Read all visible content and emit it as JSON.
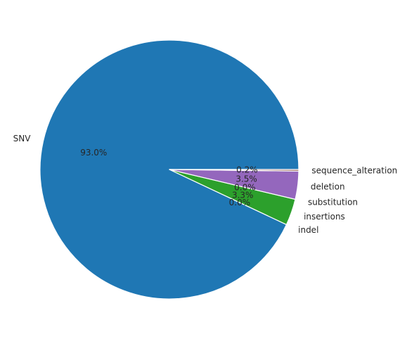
{
  "chart_data": {
    "type": "pie",
    "categories": [
      "SNV",
      "indel",
      "insertions",
      "substitution",
      "deletion",
      "sequence_alteration"
    ],
    "values": [
      93.0,
      0.0,
      3.3,
      0.0,
      3.5,
      0.2
    ],
    "value_labels": [
      "93.0%",
      "0.0%",
      "3.3%",
      "0.0%",
      "3.5%",
      "0.2%"
    ],
    "colors": [
      "#1f77b4",
      "#ff7f0e",
      "#2ca02c",
      "#d62728",
      "#9467bd",
      "#8c564b"
    ],
    "start_angle_deg": 0,
    "direction": "counterclockwise",
    "title": "",
    "legend": "none"
  }
}
